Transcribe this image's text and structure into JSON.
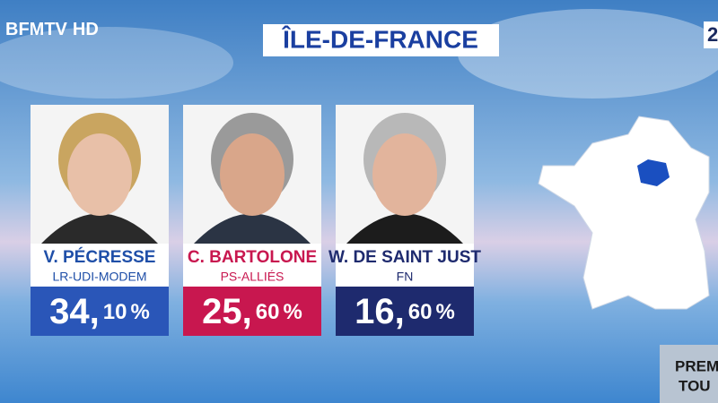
{
  "header": {
    "logo": "BFMTV",
    "logo_suffix": "HD",
    "title": "ÎLE-DE-FRANCE",
    "corner": "2"
  },
  "candidates": [
    {
      "name": "V. PÉCRESSE",
      "party": "LR-UDI-MODEM",
      "whole": "34,",
      "decimals": "10",
      "unit": "%",
      "color": "#2a56b8",
      "name_color": "#1f4fa8"
    },
    {
      "name": "C. BARTOLONE",
      "party": "PS-ALLIÉS",
      "whole": "25,",
      "decimals": "60",
      "unit": "%",
      "color": "#c8174f",
      "name_color": "#c8174f"
    },
    {
      "name": "W. DE SAINT JUST",
      "party": "FN",
      "whole": "16,",
      "decimals": "60",
      "unit": "%",
      "color": "#1e2a6e",
      "name_color": "#1e2a6e"
    }
  ],
  "badge": {
    "line1": "PREMI",
    "line2": "TOU"
  }
}
